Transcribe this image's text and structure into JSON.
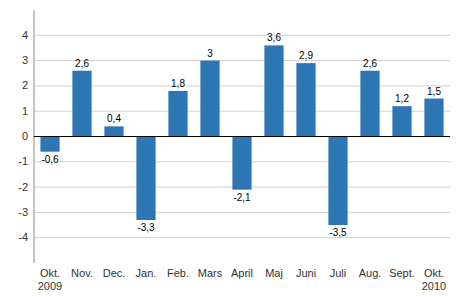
{
  "chart_data": {
    "type": "bar",
    "categories": [
      "Okt.\n2009",
      "Nov.",
      "Dec.",
      "Jan.",
      "Feb.",
      "Mars",
      "April",
      "Maj",
      "Juni",
      "Juli",
      "Aug.",
      "Sept.",
      "Okt.\n2010"
    ],
    "values": [
      -0.6,
      2.6,
      0.4,
      -3.3,
      1.8,
      3.0,
      -2.1,
      3.6,
      2.9,
      -3.5,
      2.6,
      1.2,
      1.5
    ],
    "value_labels": [
      "-0,6",
      "2,6",
      "0,4",
      "-3,3",
      "1,8",
      "3",
      "-2,1",
      "3,6",
      "2,9",
      "-3,5",
      "2,6",
      "1,2",
      "1,5"
    ],
    "color": "#2E75B6",
    "ylim": [
      -5,
      5
    ],
    "yticks": [
      -4,
      -3,
      -2,
      -1,
      0,
      1,
      2,
      3,
      4
    ],
    "grid": true,
    "data_labels": true
  }
}
